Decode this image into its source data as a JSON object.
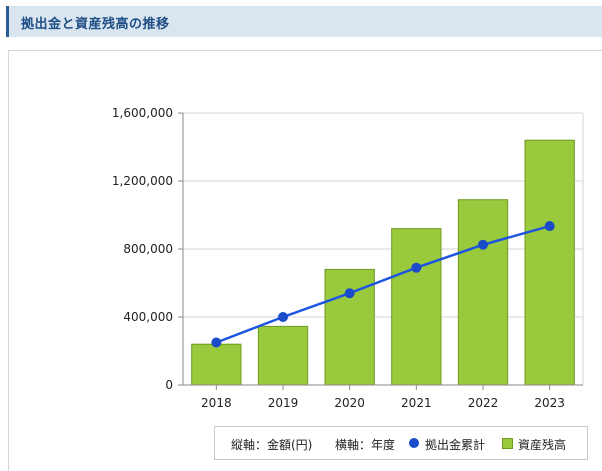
{
  "header": {
    "title": "拠出金と資産残高の推移"
  },
  "chart_data": {
    "type": "bar",
    "categories": [
      "2018",
      "2019",
      "2020",
      "2021",
      "2022",
      "2023"
    ],
    "series": [
      {
        "name": "資産残高",
        "type": "bar",
        "color": "#99c93d",
        "values": [
          240000,
          345000,
          680000,
          920000,
          1090000,
          1440000
        ]
      },
      {
        "name": "拠出金累計",
        "type": "line",
        "color": "#1a4bc8",
        "values": [
          250000,
          400000,
          540000,
          690000,
          825000,
          935000
        ]
      }
    ],
    "ylim": [
      0,
      1600000
    ],
    "yticks": [
      0,
      400000,
      800000,
      1200000,
      1600000
    ],
    "ytick_labels": [
      "0",
      "400,000",
      "800,000",
      "1,200,000",
      "1,600,000"
    ],
    "grid": true,
    "legend_position": "bottom-right"
  },
  "legend": {
    "yaxis_note": "縦軸：金額(円)",
    "xaxis_note": "横軸：年度",
    "line_label": "拠出金累計",
    "bar_label": "資産残高"
  }
}
